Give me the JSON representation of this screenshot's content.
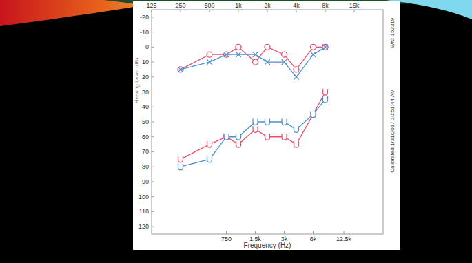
{
  "chart_data": {
    "type": "line",
    "xlabel": "Frequency (Hz)",
    "ylabel": "Hearing Level (dB)",
    "annotations": [
      "S/N: 153319",
      "Calibrated 1/31/2017 10:51:44 AM"
    ],
    "log": "x",
    "grid": false,
    "xlim": [
      125,
      32000
    ],
    "ylim": [
      -25,
      125
    ],
    "xticks": [
      125,
      250,
      500,
      {
        "value": 1000,
        "label": "1k"
      },
      {
        "value": 2000,
        "label": "2k"
      },
      {
        "value": 4000,
        "label": "4k"
      },
      {
        "value": 8000,
        "label": "8k"
      },
      {
        "value": 16000,
        "label": "16k"
      }
    ],
    "x2ticks": [
      750,
      {
        "value": 1500,
        "label": "1.5k"
      },
      {
        "value": 3000,
        "label": "3k"
      },
      {
        "value": 6000,
        "label": "6k"
      },
      {
        "value": 12500,
        "label": "12.5k"
      }
    ],
    "yticks": [
      -20,
      -10,
      0,
      10,
      20,
      30,
      40,
      50,
      60,
      70,
      80,
      90,
      100,
      110,
      120
    ],
    "x": [
      250,
      500,
      750,
      1000,
      1500,
      2000,
      3000,
      4000,
      6000,
      8000
    ],
    "series": [
      {
        "color": "#e8506a",
        "marker": "circle",
        "values": [
          15,
          5,
          5,
          0,
          10,
          0,
          5,
          15,
          0,
          0
        ]
      },
      {
        "color": "#4a90d0",
        "marker": "x",
        "values": [
          15,
          10,
          5,
          5,
          5,
          10,
          10,
          20,
          5,
          0
        ]
      },
      {
        "color": "#e8506a",
        "marker": "u",
        "values": [
          75,
          65,
          60,
          65,
          55,
          60,
          60,
          65,
          45,
          30
        ]
      },
      {
        "color": "#4a90d0",
        "marker": "u",
        "values": [
          80,
          75,
          60,
          60,
          50,
          50,
          50,
          55,
          45,
          35
        ]
      }
    ]
  }
}
